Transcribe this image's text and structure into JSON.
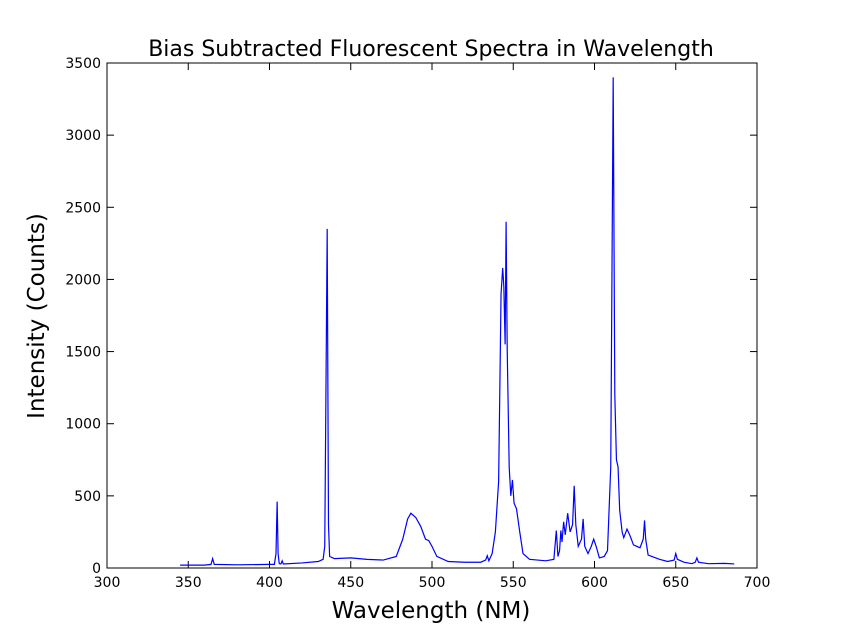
{
  "chart_data": {
    "type": "line",
    "title": "Bias Subtracted Fluorescent Spectra in Wavelength",
    "x_label": "Wavelength (NM)",
    "y_label": "Intensity (Counts)",
    "color": "#0000ff",
    "grid": false,
    "xlim": [
      300,
      700
    ],
    "xticks": [
      300,
      350,
      400,
      450,
      500,
      550,
      600,
      650,
      700
    ],
    "ylim": [
      0,
      3500
    ],
    "yticks": [
      0,
      500,
      1000,
      1500,
      2000,
      2500,
      3000,
      3500
    ],
    "x": [
      345,
      360,
      364,
      365,
      366,
      380,
      400,
      403,
      404,
      404.7,
      405.3,
      406,
      407,
      407.8,
      408.5,
      420,
      430,
      433,
      434,
      435.5,
      436.3,
      437,
      440,
      450,
      460,
      470,
      478,
      482,
      485,
      487,
      490,
      493,
      496,
      498,
      500,
      503,
      510,
      520,
      530,
      533,
      534,
      535,
      537,
      539,
      541,
      542.5,
      543.5,
      544.2,
      545,
      545.6,
      546.3,
      547.5,
      548.5,
      549.5,
      550.5,
      552,
      554,
      556,
      560,
      570,
      575,
      576.5,
      577.5,
      578.5,
      579.3,
      580,
      581,
      582,
      583.5,
      585,
      586.5,
      587.5,
      588.5,
      590,
      592,
      593,
      594,
      596,
      598,
      599.5,
      601,
      603,
      606,
      608,
      610,
      611.5,
      612.5,
      613.5,
      614.5,
      615.5,
      617,
      618,
      620,
      622,
      624,
      626,
      628,
      630,
      630.8,
      631.5,
      633,
      640,
      645,
      649,
      650,
      651,
      655,
      660,
      662,
      663,
      664,
      670,
      680,
      686
    ],
    "values": [
      20,
      20,
      25,
      65,
      25,
      22,
      25,
      25,
      100,
      460,
      100,
      30,
      28,
      50,
      28,
      35,
      45,
      60,
      150,
      2350,
      300,
      80,
      65,
      70,
      60,
      55,
      80,
      200,
      340,
      380,
      350,
      290,
      200,
      190,
      150,
      80,
      45,
      40,
      40,
      55,
      85,
      50,
      100,
      250,
      600,
      1900,
      2080,
      1950,
      1550,
      2400,
      1500,
      700,
      500,
      610,
      450,
      410,
      250,
      100,
      60,
      50,
      60,
      260,
      80,
      120,
      260,
      180,
      320,
      230,
      380,
      250,
      300,
      570,
      300,
      150,
      200,
      340,
      150,
      100,
      150,
      200,
      150,
      70,
      80,
      120,
      700,
      3400,
      1200,
      750,
      700,
      400,
      250,
      210,
      270,
      220,
      160,
      150,
      140,
      200,
      330,
      200,
      90,
      60,
      45,
      55,
      100,
      60,
      40,
      30,
      40,
      70,
      40,
      30,
      32,
      28
    ]
  }
}
